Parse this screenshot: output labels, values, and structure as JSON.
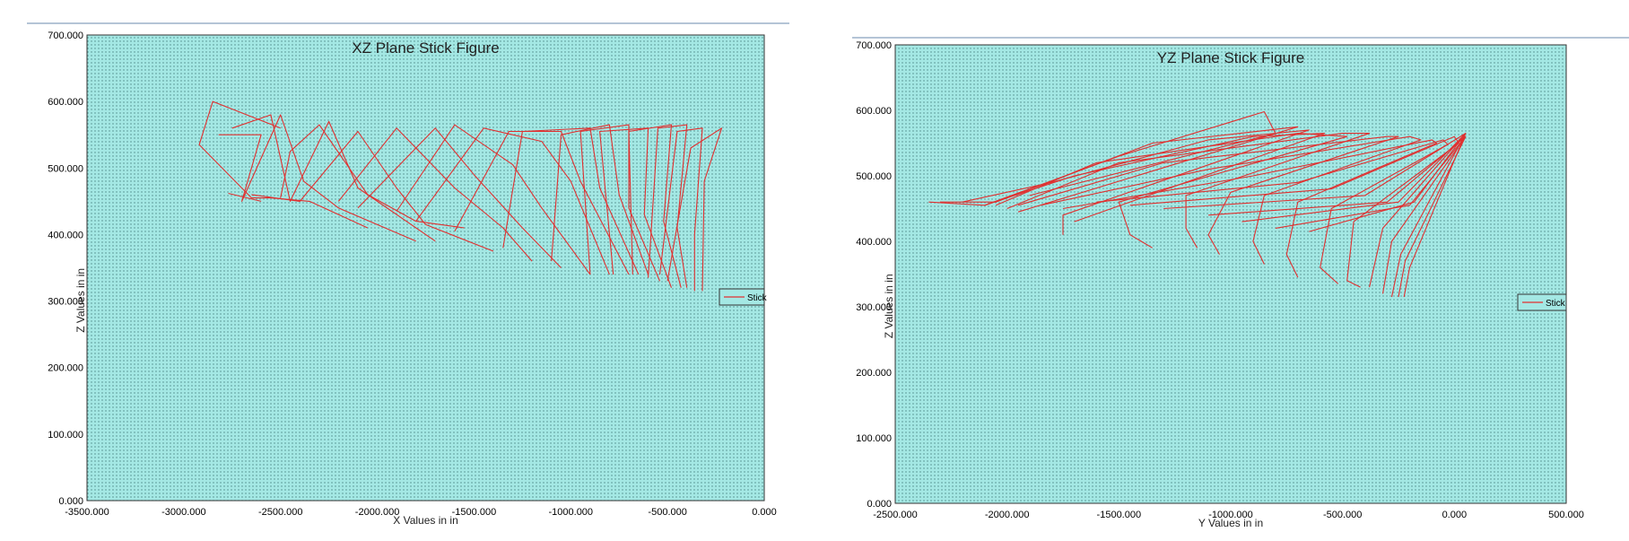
{
  "chart_data": [
    {
      "type": "line",
      "title": "XZ Plane Stick Figure",
      "xlabel": "X Values in in",
      "ylabel": "Z Values in in",
      "xlim": [
        -3500,
        0
      ],
      "ylim": [
        0,
        700
      ],
      "xticks": [
        "-3500.000",
        "-3000.000",
        "-2500.000",
        "-2000.000",
        "-1500.000",
        "-1000.000",
        "-500.000",
        "0.000"
      ],
      "yticks": [
        "0.000",
        "100.000",
        "200.000",
        "300.000",
        "400.000",
        "500.000",
        "600.000",
        "700.000"
      ],
      "legend": {
        "position": "right",
        "entries": [
          "Stick"
        ]
      },
      "grid": false,
      "series": [
        {
          "name": "Stick",
          "color": "#e03030",
          "segments": [
            [
              [
                -2500,
                560
              ],
              [
                -2850,
                600
              ],
              [
                -2920,
                535
              ],
              [
                -2650,
                455
              ],
              [
                -2550,
                455
              ],
              [
                -2350,
                450
              ],
              [
                -2050,
                410
              ]
            ],
            [
              [
                -2820,
                550
              ],
              [
                -2600,
                550
              ],
              [
                -2700,
                450
              ],
              [
                -2500,
                580
              ],
              [
                -2380,
                480
              ],
              [
                -2200,
                440
              ],
              [
                -1800,
                390
              ]
            ],
            [
              [
                -2750,
                560
              ],
              [
                -2550,
                580
              ],
              [
                -2450,
                450
              ],
              [
                -2250,
                570
              ],
              [
                -2100,
                470
              ],
              [
                -1700,
                390
              ]
            ],
            [
              [
                -2500,
                455
              ],
              [
                -2450,
                525
              ],
              [
                -2300,
                565
              ],
              [
                -2050,
                460
              ],
              [
                -1800,
                420
              ],
              [
                -1550,
                410
              ]
            ],
            [
              [
                -2650,
                460
              ],
              [
                -2400,
                450
              ],
              [
                -2100,
                555
              ],
              [
                -1900,
                470
              ],
              [
                -1750,
                415
              ],
              [
                -1400,
                375
              ]
            ],
            [
              [
                -2770,
                462
              ],
              [
                -2600,
                450
              ]
            ],
            [
              [
                -2200,
                450
              ],
              [
                -1900,
                560
              ],
              [
                -1600,
                470
              ],
              [
                -1350,
                410
              ],
              [
                -1200,
                360
              ]
            ],
            [
              [
                -2100,
                440
              ],
              [
                -1700,
                560
              ],
              [
                -1500,
                490
              ],
              [
                -1250,
                410
              ],
              [
                -1050,
                350
              ]
            ],
            [
              [
                -1900,
                435
              ],
              [
                -1600,
                565
              ],
              [
                -1300,
                505
              ],
              [
                -1150,
                440
              ],
              [
                -900,
                340
              ]
            ],
            [
              [
                -1800,
                420
              ],
              [
                -1450,
                560
              ],
              [
                -1150,
                540
              ],
              [
                -1000,
                480
              ],
              [
                -800,
                340
              ]
            ],
            [
              [
                -1600,
                405
              ],
              [
                -1320,
                555
              ],
              [
                -1050,
                555
              ],
              [
                -950,
                480
              ],
              [
                -700,
                340
              ]
            ],
            [
              [
                -1350,
                380
              ],
              [
                -1250,
                555
              ],
              [
                -900,
                560
              ],
              [
                -850,
                470
              ],
              [
                -650,
                340
              ]
            ],
            [
              [
                -1100,
                360
              ],
              [
                -1050,
                550
              ],
              [
                -800,
                565
              ],
              [
                -750,
                460
              ],
              [
                -600,
                340
              ]
            ],
            [
              [
                -900,
                340
              ],
              [
                -950,
                555
              ],
              [
                -700,
                565
              ],
              [
                -700,
                440
              ],
              [
                -540,
                330
              ]
            ],
            [
              [
                -780,
                340
              ],
              [
                -850,
                555
              ],
              [
                -600,
                560
              ],
              [
                -620,
                430
              ],
              [
                -480,
                320
              ]
            ],
            [
              [
                -680,
                340
              ],
              [
                -700,
                555
              ],
              [
                -480,
                565
              ],
              [
                -520,
                420
              ],
              [
                -430,
                320
              ]
            ],
            [
              [
                -600,
                335
              ],
              [
                -550,
                560
              ],
              [
                -400,
                565
              ],
              [
                -450,
                410
              ],
              [
                -400,
                320
              ]
            ],
            [
              [
                -540,
                340
              ],
              [
                -450,
                555
              ],
              [
                -320,
                560
              ],
              [
                -360,
                400
              ],
              [
                -360,
                315
              ]
            ],
            [
              [
                -500,
                330
              ],
              [
                -380,
                530
              ],
              [
                -220,
                560
              ],
              [
                -310,
                480
              ],
              [
                -320,
                315
              ]
            ]
          ]
        }
      ]
    },
    {
      "type": "line",
      "title": "YZ Plane Stick Figure",
      "xlabel": "Y Values in in",
      "ylabel": "Z Values in in",
      "xlim": [
        -2500,
        500
      ],
      "ylim": [
        0,
        700
      ],
      "xticks": [
        "-2500.000",
        "-2000.000",
        "-1500.000",
        "-1000.000",
        "-500.000",
        "0.000",
        "500.000"
      ],
      "yticks": [
        "0.000",
        "100.000",
        "200.000",
        "300.000",
        "400.000",
        "500.000",
        "600.000",
        "700.000"
      ],
      "legend": {
        "position": "right",
        "entries": [
          "Stick"
        ]
      },
      "grid": false,
      "series": [
        {
          "name": "Stick",
          "color": "#e03030",
          "segments": [
            [
              [
                -2350,
                460
              ],
              [
                -2100,
                455
              ],
              [
                -1500,
                530
              ],
              [
                -850,
                598
              ],
              [
                -800,
                565
              ],
              [
                -1900,
                470
              ]
            ],
            [
              [
                -2300,
                460
              ],
              [
                -2050,
                460
              ],
              [
                -1350,
                550
              ],
              [
                -700,
                575
              ],
              [
                -1950,
                445
              ]
            ],
            [
              [
                -2200,
                460
              ],
              [
                -1800,
                490
              ],
              [
                -1100,
                555
              ],
              [
                -650,
                570
              ],
              [
                -1750,
                440
              ],
              [
                -1750,
                410
              ]
            ],
            [
              [
                -2100,
                455
              ],
              [
                -1700,
                500
              ],
              [
                -900,
                560
              ],
              [
                -580,
                565
              ],
              [
                -1700,
                430
              ]
            ],
            [
              [
                -2050,
                455
              ],
              [
                -1600,
                520
              ],
              [
                -700,
                565
              ],
              [
                -480,
                560
              ],
              [
                -1500,
                460
              ],
              [
                -1450,
                410
              ],
              [
                -1350,
                390
              ]
            ],
            [
              [
                -2000,
                450
              ],
              [
                -1500,
                520
              ],
              [
                -500,
                565
              ],
              [
                -380,
                565
              ],
              [
                -1200,
                470
              ],
              [
                -1200,
                420
              ],
              [
                -1150,
                390
              ]
            ],
            [
              [
                -1950,
                455
              ],
              [
                -1300,
                520
              ],
              [
                -300,
                560
              ],
              [
                -250,
                560
              ],
              [
                -1000,
                475
              ],
              [
                -1100,
                410
              ],
              [
                -1050,
                380
              ]
            ],
            [
              [
                -1850,
                455
              ],
              [
                -1100,
                510
              ],
              [
                -200,
                560
              ],
              [
                -150,
                555
              ],
              [
                -850,
                470
              ],
              [
                -900,
                400
              ],
              [
                -850,
                365
              ]
            ],
            [
              [
                -1750,
                450
              ],
              [
                -900,
                500
              ],
              [
                -100,
                555
              ],
              [
                -80,
                550
              ],
              [
                -700,
                460
              ],
              [
                -750,
                380
              ],
              [
                -700,
                345
              ]
            ],
            [
              [
                -1600,
                460
              ],
              [
                -700,
                490
              ],
              [
                -50,
                555
              ],
              [
                -30,
                548
              ],
              [
                -550,
                450
              ],
              [
                -600,
                360
              ],
              [
                -520,
                335
              ]
            ],
            [
              [
                -1450,
                455
              ],
              [
                -550,
                480
              ],
              [
                0,
                560
              ],
              [
                20,
                550
              ],
              [
                -450,
                430
              ],
              [
                -480,
                340
              ],
              [
                -420,
                330
              ]
            ],
            [
              [
                -1300,
                450
              ],
              [
                -400,
                470
              ],
              [
                50,
                565
              ],
              [
                -320,
                420
              ],
              [
                -380,
                330
              ]
            ],
            [
              [
                -1100,
                440
              ],
              [
                -300,
                460
              ],
              [
                50,
                560
              ],
              [
                -280,
                400
              ],
              [
                -320,
                320
              ]
            ],
            [
              [
                -950,
                430
              ],
              [
                -250,
                460
              ],
              [
                50,
                565
              ],
              [
                -240,
                380
              ],
              [
                -280,
                315
              ]
            ],
            [
              [
                -800,
                420
              ],
              [
                -200,
                455
              ],
              [
                50,
                560
              ],
              [
                -220,
                370
              ],
              [
                -250,
                315
              ]
            ],
            [
              [
                -650,
                415
              ],
              [
                -180,
                460
              ],
              [
                50,
                565
              ],
              [
                -200,
                360
              ],
              [
                -225,
                315
              ]
            ]
          ]
        }
      ]
    }
  ]
}
